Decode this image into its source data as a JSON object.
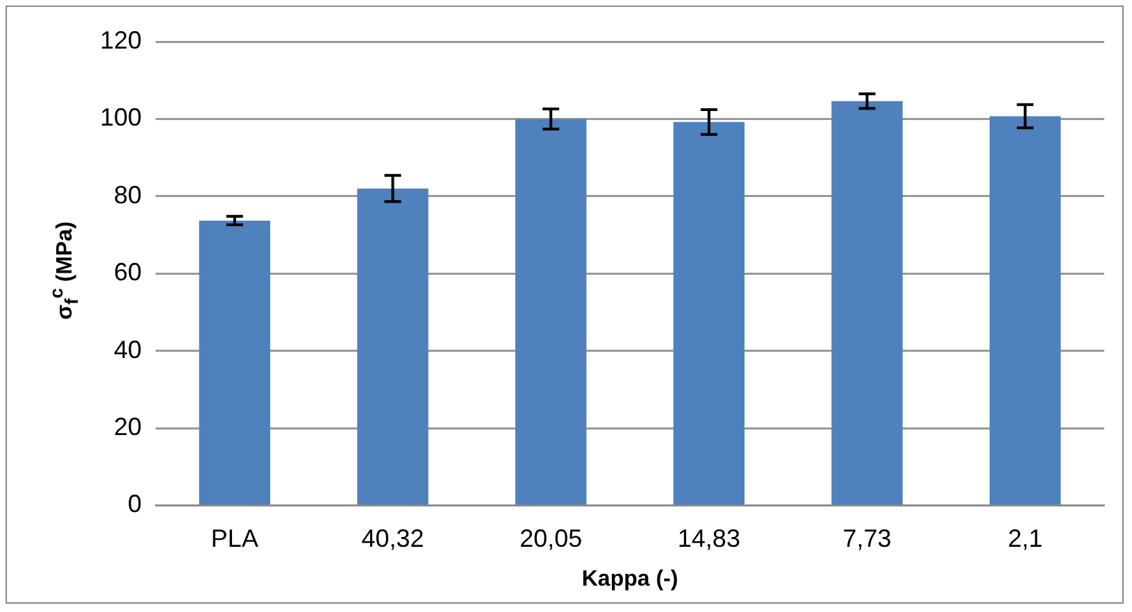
{
  "chart_data": {
    "type": "bar",
    "categories": [
      "PLA",
      "40,32",
      "20,05",
      "14,83",
      "7,73",
      "2,1"
    ],
    "values": [
      73.7,
      82,
      100,
      99.2,
      104.6,
      100.7
    ],
    "errors": [
      1.1,
      3.4,
      2.6,
      3.2,
      1.9,
      3
    ],
    "color": "#4f81bd",
    "xlabel": "Kappa (-)",
    "ylabel": "σ$_{f}$$^{c}$ (MPa)",
    "ylim": [
      0,
      120
    ],
    "yticks": [
      0,
      20,
      40,
      60,
      80,
      100,
      120
    ],
    "grid": "y",
    "legend": false
  }
}
